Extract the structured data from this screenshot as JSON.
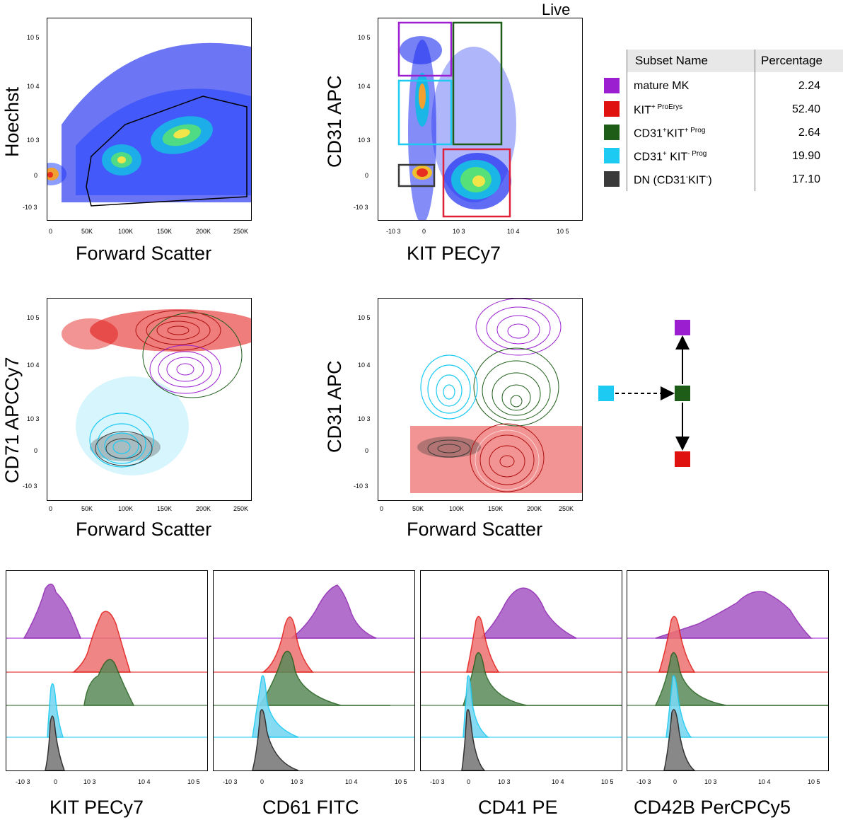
{
  "live_label": "Live",
  "legend": {
    "headers": [
      "Subset Name",
      "Percentage"
    ],
    "rows": [
      {
        "name": "mature MK",
        "name_sup": "",
        "name_tail": "",
        "pct": "2.24",
        "color": "#9b1fd0"
      },
      {
        "name": "KIT",
        "name_sup": "+ ProErys",
        "name_tail": "",
        "pct": "52.40",
        "color": "#e0120f"
      },
      {
        "name": "CD31",
        "name_sup": "+",
        "name_tail": "KIT",
        "name_sup2": "+ Prog",
        "pct": "2.64",
        "color": "#1e5d18"
      },
      {
        "name": "CD31",
        "name_sup": "+",
        "name_tail": " KIT",
        "name_sup2": "- Prog",
        "pct": "19.90",
        "color": "#1ccaf2"
      },
      {
        "name": "DN (CD31",
        "name_sup": "-",
        "name_tail": "KIT",
        "name_sup2": "-",
        "name_end": ")",
        "pct": "17.10",
        "color": "#3a3a3a"
      }
    ]
  },
  "pathway": {
    "arrow_style": "dashed then solid",
    "nodes": [
      "CD31+ KIT- Prog",
      "CD31+KIT+ Prog",
      "mature MK",
      "KIT+ ProErys"
    ]
  },
  "colors": {
    "mk": "#9b1fd0",
    "proery": "#e0120f",
    "prog": "#1e5d18",
    "kitneg": "#1ccaf2",
    "dn": "#3a3a3a",
    "gate_black": "#000000"
  },
  "chart_data": [
    {
      "type": "scatter",
      "title": "",
      "xlabel": "Forward Scatter",
      "ylabel": "Hoechst",
      "x_ticks": [
        "0",
        "50K",
        "100K",
        "150K",
        "200K",
        "250K"
      ],
      "y_ticks": [
        "10 5",
        "10 4",
        "10 3",
        "0",
        "-10 3"
      ],
      "gate": "polygon"
    },
    {
      "type": "scatter",
      "title": "Live",
      "xlabel": "KIT PECy7",
      "ylabel": "CD31 APC",
      "x_ticks": [
        "-10 3",
        "0",
        "10 3",
        "10 4",
        "10 5"
      ],
      "y_ticks": [
        "10 5",
        "10 4",
        "10 3",
        "0",
        "-10 3"
      ],
      "gates": [
        "mature MK",
        "CD31+KIT+ Prog",
        "CD31+ KIT- Prog",
        "DN",
        "KIT+ ProErys"
      ]
    },
    {
      "type": "scatter",
      "xlabel": "Forward Scatter",
      "ylabel": "CD71 APCCy7",
      "x_ticks": [
        "0",
        "50K",
        "100K",
        "150K",
        "200K",
        "250K"
      ],
      "y_ticks": [
        "10 5",
        "10 4",
        "10 3",
        "0",
        "-10 3"
      ]
    },
    {
      "type": "scatter",
      "xlabel": "Forward Scatter",
      "ylabel": "CD31 APC",
      "x_ticks": [
        "0",
        "50K",
        "100K",
        "150K",
        "200K",
        "250K"
      ],
      "y_ticks": [
        "10 5",
        "10 4",
        "10 3",
        "0",
        "-10 3"
      ]
    },
    {
      "type": "area",
      "xlabel": "KIT PECy7",
      "x_ticks": [
        "-10 3",
        "0",
        "10 3",
        "10 4",
        "10 5"
      ],
      "series": [
        "mature MK",
        "KIT+ ProErys",
        "CD31+KIT+ Prog",
        "CD31+ KIT- Prog",
        "DN"
      ]
    },
    {
      "type": "area",
      "xlabel": "CD61 FITC",
      "x_ticks": [
        "-10 3",
        "0",
        "10 3",
        "10 4",
        "10 5"
      ],
      "series": [
        "mature MK",
        "KIT+ ProErys",
        "CD31+KIT+ Prog",
        "CD31+ KIT- Prog",
        "DN"
      ]
    },
    {
      "type": "area",
      "xlabel": "CD41 PE",
      "x_ticks": [
        "-10 3",
        "0",
        "10 3",
        "10 4",
        "10 5"
      ],
      "series": [
        "mature MK",
        "KIT+ ProErys",
        "CD31+KIT+ Prog",
        "CD31+ KIT- Prog",
        "DN"
      ]
    },
    {
      "type": "area",
      "xlabel": "CD42B PerCPCy5",
      "x_ticks": [
        "-10 3",
        "0",
        "10 3",
        "10 4",
        "10 5"
      ],
      "series": [
        "mature MK",
        "KIT+ ProErys",
        "CD31+KIT+ Prog",
        "CD31+ KIT- Prog",
        "DN"
      ]
    }
  ]
}
